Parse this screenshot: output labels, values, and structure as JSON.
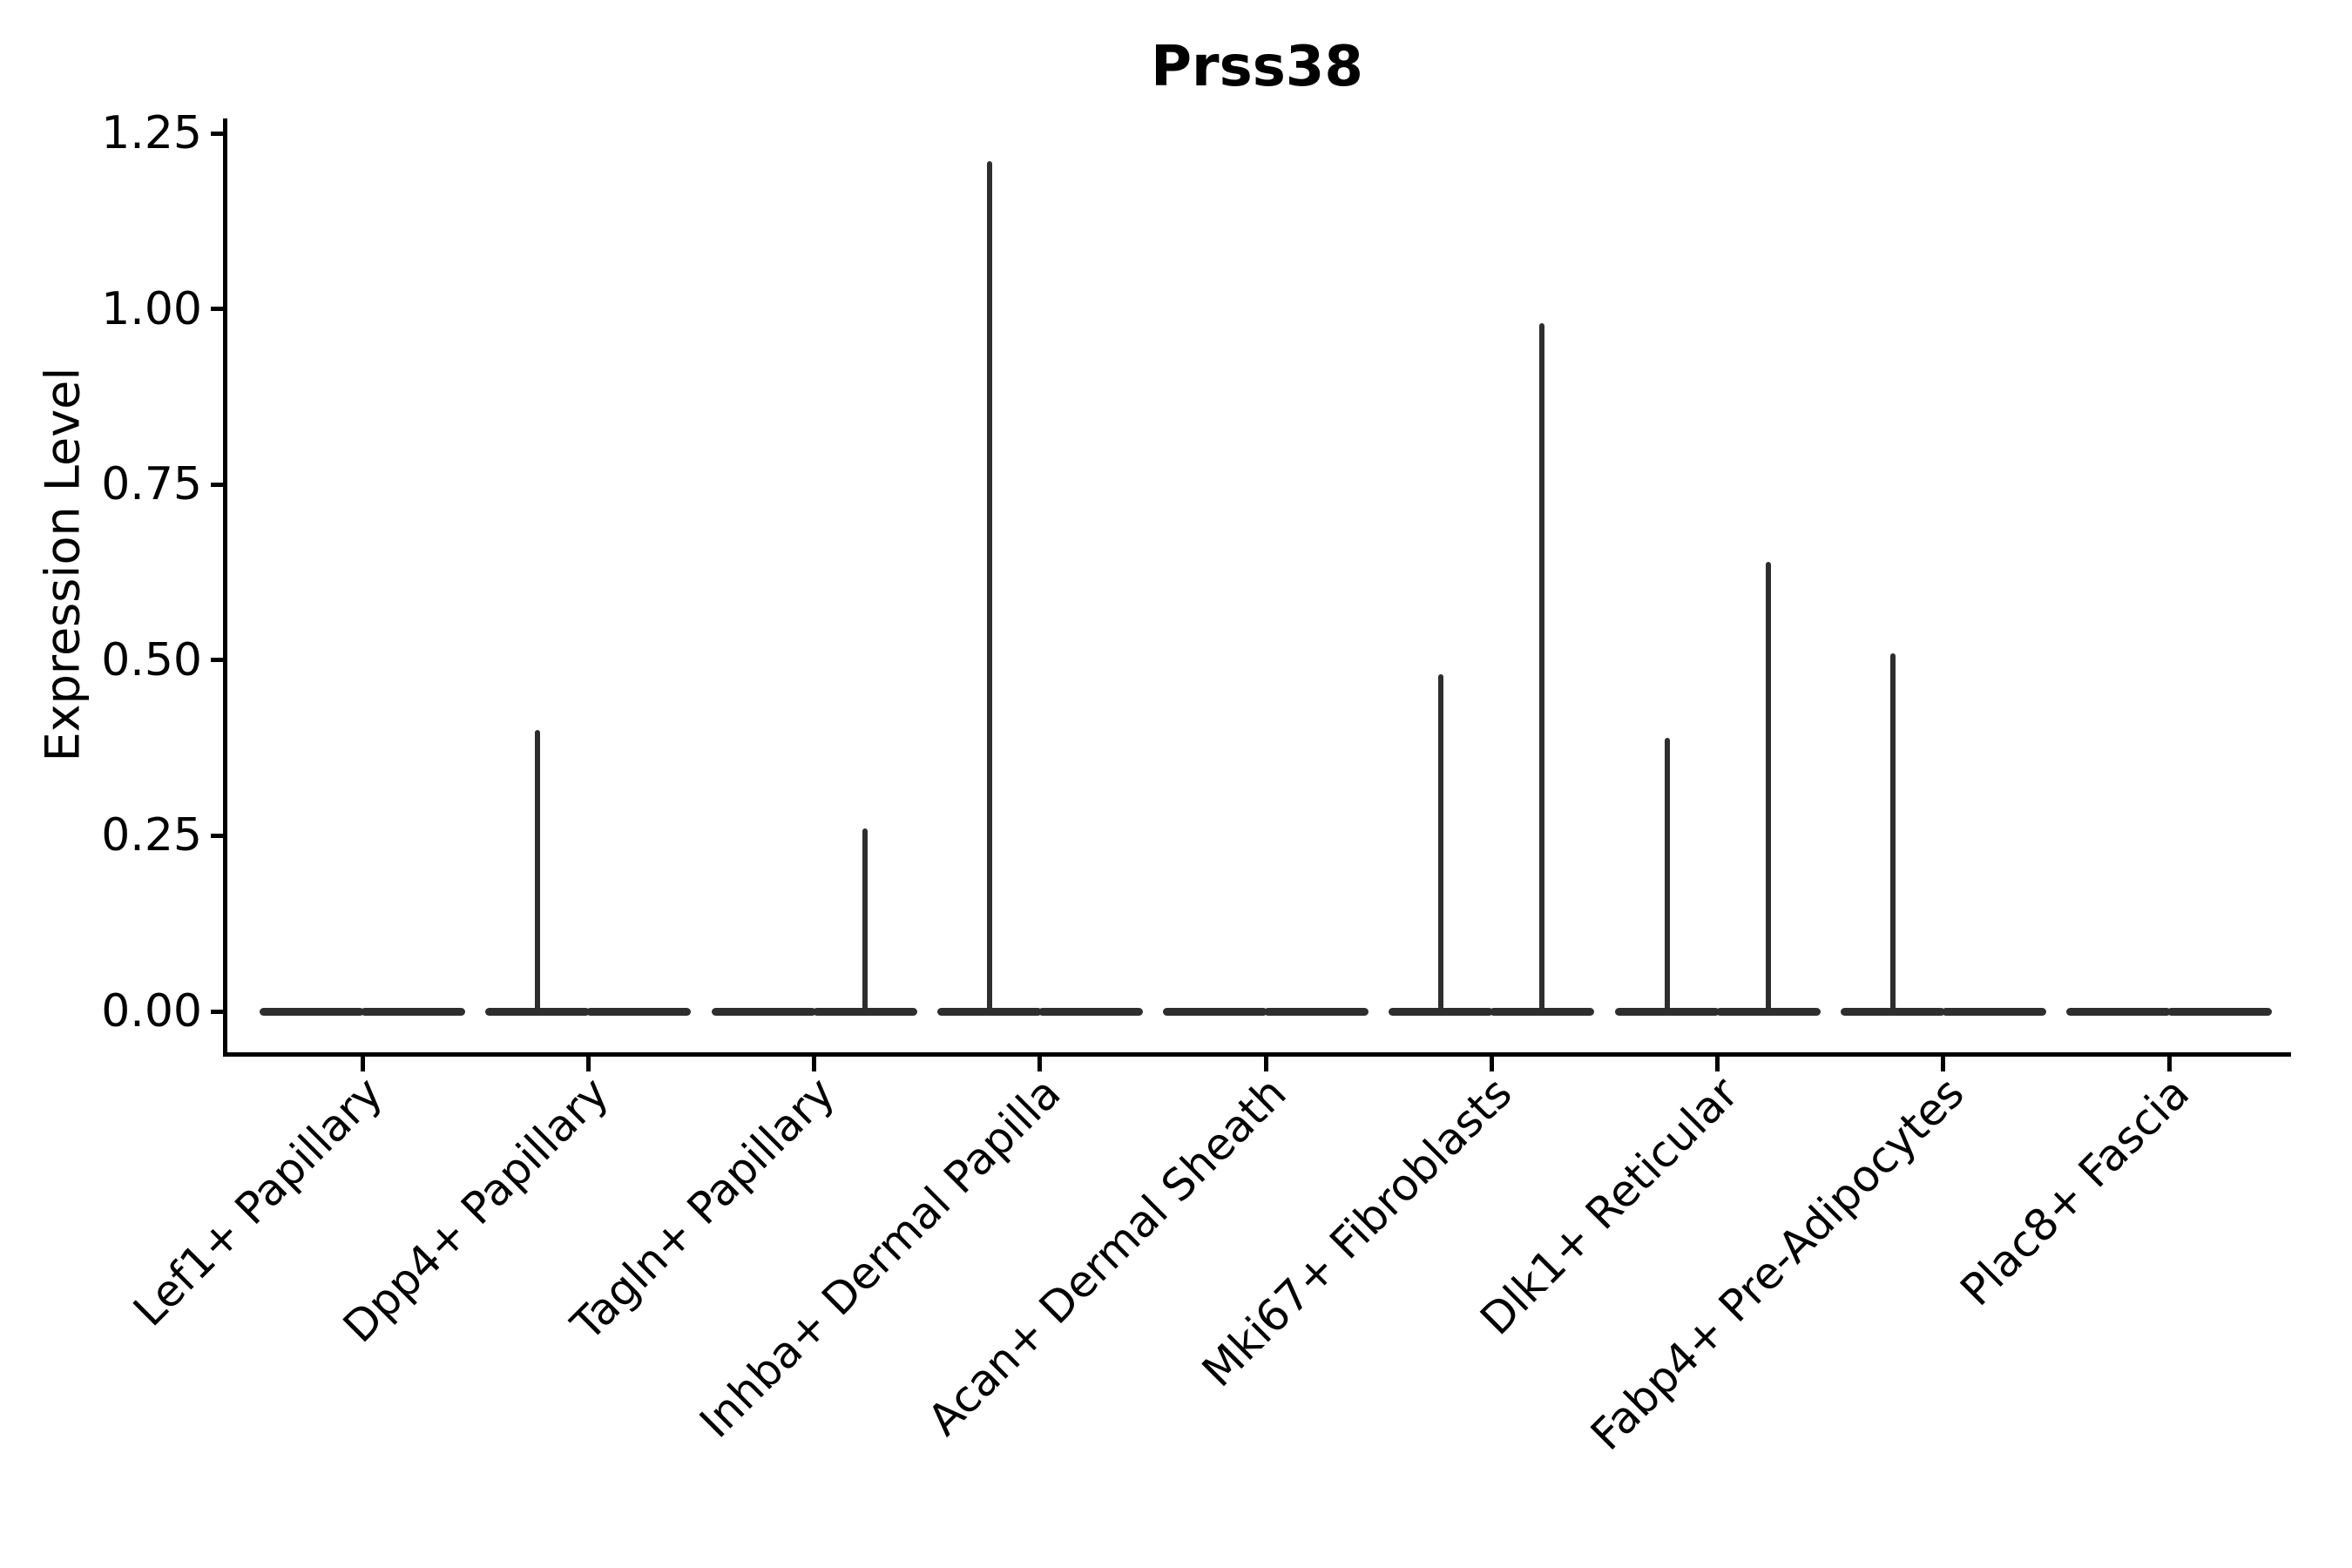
{
  "figure": {
    "background": "#ffffff"
  },
  "chart_data": {
    "type": "violin",
    "title": "Prss38",
    "ylabel": "Expression Level",
    "xlabel": "",
    "grid": false,
    "legend": "none",
    "ylim": [
      -0.06,
      1.27
    ],
    "ytick_values": [
      0.0,
      0.25,
      0.5,
      0.75,
      1.0,
      1.25
    ],
    "ytick_labels": [
      "0.00",
      "0.25",
      "0.50",
      "0.75",
      "1.00",
      "1.25"
    ],
    "categories": [
      "Lef1+ Papillary",
      "Dpp4+ Papillary",
      "Tagln+ Papillary",
      "Inhba+ Dermal Papilla",
      "Acan+ Dermal Sheath",
      "Mki67+ Fibroblasts",
      "Dlk1+ Reticular",
      "Fabp4+ Pre-Adipocytes",
      "Plac8+ Fascia"
    ],
    "series": [
      {
        "name": "left-subviolin",
        "description": "left violin of each category pair; expression concentrated at 0 with a thin spike up to the max value",
        "max_values": [
          0,
          0.4,
          0,
          1.21,
          0,
          0.48,
          0.39,
          0.51,
          0
        ]
      },
      {
        "name": "right-subviolin",
        "description": "right violin of each category pair; expression concentrated at 0 with a thin spike up to the max value",
        "max_values": [
          0,
          0,
          0.26,
          0,
          0,
          0.98,
          0.64,
          0,
          0
        ]
      }
    ],
    "colors": {
      "violin_stroke": "#2e2e2e",
      "axis": "#000000",
      "text": "#000000",
      "background": "#ffffff"
    }
  }
}
